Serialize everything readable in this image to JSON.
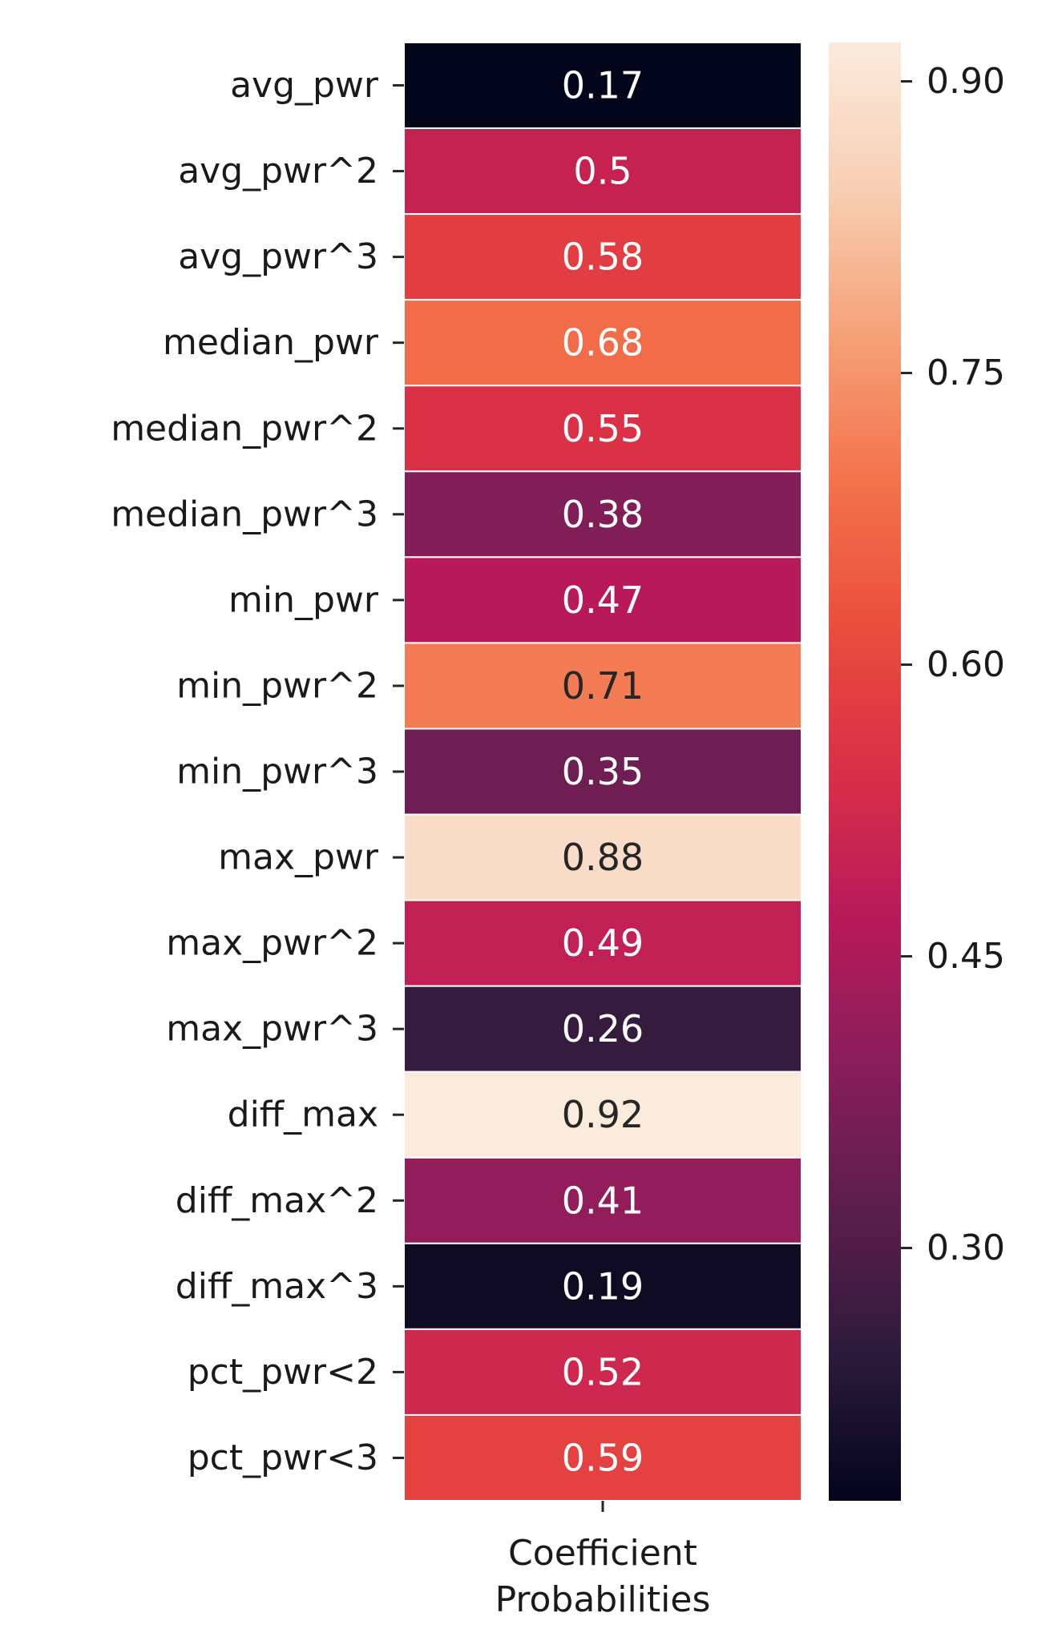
{
  "chart_data": {
    "type": "heatmap",
    "rows": [
      "avg_pwr",
      "avg_pwr^2",
      "avg_pwr^3",
      "median_pwr",
      "median_pwr^2",
      "median_pwr^3",
      "min_pwr",
      "min_pwr^2",
      "min_pwr^3",
      "max_pwr",
      "max_pwr^2",
      "max_pwr^3",
      "diff_max",
      "diff_max^2",
      "diff_max^3",
      "pct_pwr<2",
      "pct_pwr<3"
    ],
    "columns": [
      "Coefficient\nProbabilities"
    ],
    "values": [
      0.17,
      0.5,
      0.58,
      0.68,
      0.55,
      0.38,
      0.47,
      0.71,
      0.35,
      0.88,
      0.49,
      0.26,
      0.92,
      0.41,
      0.19,
      0.52,
      0.59
    ],
    "cell_labels": [
      "0.17",
      "0.5",
      "0.58",
      "0.68",
      "0.55",
      "0.38",
      "0.47",
      "0.71",
      "0.35",
      "0.88",
      "0.49",
      "0.26",
      "0.92",
      "0.41",
      "0.19",
      "0.52",
      "0.59"
    ],
    "xlabel_lines": [
      "Coefficient",
      "Probabilities"
    ],
    "colorbar": {
      "min": 0.17,
      "max": 0.92,
      "ticks": [
        0.3,
        0.45,
        0.6,
        0.75,
        0.9
      ],
      "tick_labels": [
        "0.30",
        "0.45",
        "0.60",
        "0.75",
        "0.90"
      ],
      "colormap": "rocket"
    },
    "colormap_stops": [
      "#03051a",
      "#2b1b3a",
      "#5c1e4c",
      "#8a1d5a",
      "#b81a59",
      "#d92f48",
      "#ea4e3c",
      "#f3734c",
      "#f6a178",
      "#f8cfb3",
      "#faebdd"
    ],
    "dark_text_color": "#262626",
    "light_text_color": "#ffffff",
    "grid_line_color": "#ffffff"
  }
}
